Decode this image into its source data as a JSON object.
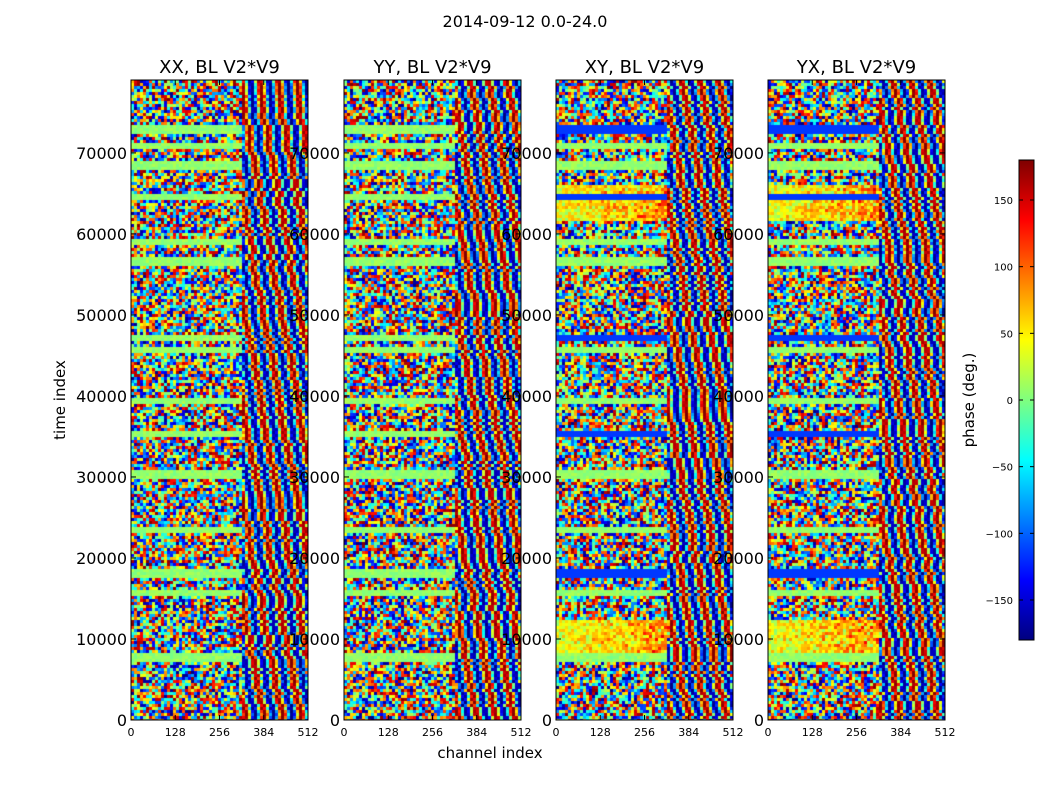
{
  "chart_data": {
    "type": "heatmap",
    "suptitle": "2014-09-12 0.0-24.0",
    "xlabel": "channel index",
    "ylabel": "time index",
    "xlim": [
      0,
      512
    ],
    "ylim": [
      0,
      79000
    ],
    "xticks": [
      0,
      128,
      256,
      384,
      512
    ],
    "yticks": [
      0,
      10000,
      20000,
      30000,
      40000,
      50000,
      60000,
      70000
    ],
    "panels": [
      {
        "title": "XX, BL V2*V9",
        "product": "XX"
      },
      {
        "title": "YY, BL V2*V9",
        "product": "YY"
      },
      {
        "title": "XY, BL V2*V9",
        "product": "XY"
      },
      {
        "title": "YX, BL V2*V9",
        "product": "YX"
      }
    ],
    "colorbar": {
      "label": "phase (deg.)",
      "range": [
        -180,
        180
      ],
      "ticks": [
        -150,
        -100,
        -50,
        0,
        50,
        100,
        150
      ],
      "colormap": "jet"
    },
    "value_description": "phase in degrees per (channel index, time index)"
  },
  "colors": {
    "jet": [
      "#00007f",
      "#0000ff",
      "#007fff",
      "#00ffff",
      "#7fff7f",
      "#ffff00",
      "#ff7f00",
      "#ff0000",
      "#7f0000"
    ],
    "axis": "#000000",
    "background": "#ffffff"
  }
}
